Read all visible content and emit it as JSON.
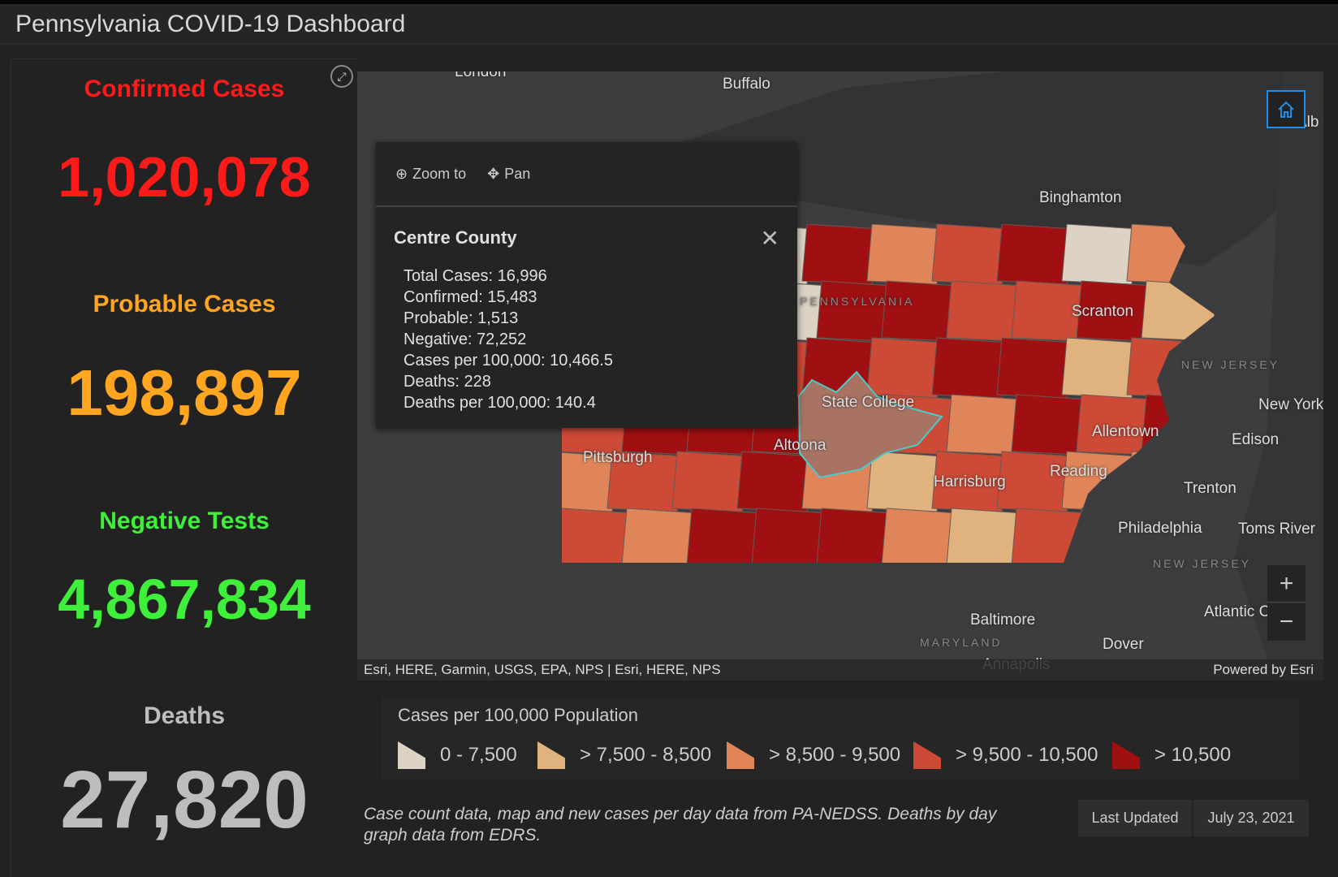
{
  "title": "Pennsylvania COVID-19 Dashboard",
  "stats": [
    {
      "label": "Confirmed Cases",
      "value": "1,020,078",
      "color": "#ff1a1a"
    },
    {
      "label": "Probable Cases",
      "value": "198,897",
      "color": "#ffa520"
    },
    {
      "label": "Negative Tests",
      "value": "4,867,834",
      "color": "#3ef03a"
    },
    {
      "label": "Deaths",
      "value": "27,820",
      "color": "#bdbdbd"
    }
  ],
  "map": {
    "places": [
      "London",
      "Buffalo",
      "Binghamton",
      "Scranton",
      "NEW JERSEY",
      "New York",
      "Edison",
      "Allentown",
      "Reading",
      "Trenton",
      "Philadelphia",
      "Toms River",
      "NEW JERSEY",
      "Atlantic City",
      "Dover",
      "Baltimore",
      "MARYLAND",
      "Annapolis",
      "Harrisburg",
      "Altoona",
      "State College",
      "Pittsburgh",
      "PENNSYLVANIA",
      "Alb"
    ],
    "attribution": "Esri, HERE, Garmin, USGS, EPA, NPS | Esri, HERE, NPS",
    "powered": "Powered by Esri",
    "icons": {
      "fullscreen": "expand-icon",
      "home": "home-icon",
      "zoom_in": "plus-icon",
      "zoom_out": "minus-icon"
    }
  },
  "popup": {
    "zoom_to": "Zoom to",
    "pan": "Pan",
    "title": "Centre County",
    "rows": [
      "Total Cases: 16,996",
      "Confirmed: 15,483",
      "Probable: 1,513",
      "Negative: 72,252",
      "Cases per 100,000: 10,466.5",
      "Deaths: 228",
      "Deaths per 100,000: 140.4"
    ]
  },
  "legend": {
    "title": "Cases per 100,000 Population",
    "items": [
      {
        "label": "0 - 7,500",
        "color": "#ddd3c4"
      },
      {
        "label": "> 7,500 - 8,500",
        "color": "#e0b27e"
      },
      {
        "label": "> 8,500 - 9,500",
        "color": "#e08559"
      },
      {
        "label": "> 9,500 - 10,500",
        "color": "#cc4a36"
      },
      {
        "label": "> 10,500",
        "color": "#a00f12"
      }
    ]
  },
  "footer": {
    "note": "Case count data, map and new cases per day data from PA-NEDSS.  Deaths by day graph data from EDRS.",
    "last_updated_label": "Last Updated",
    "last_updated_value": "July 23, 2021"
  }
}
